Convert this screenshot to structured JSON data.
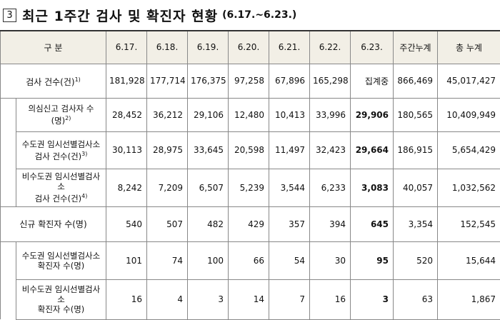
{
  "header": {
    "box": "3",
    "title": "최근 1주간 검사 및 확진자 현황",
    "period": "(6.17.~6.23.)"
  },
  "table": {
    "columns": [
      "구 분",
      "6.17.",
      "6.18.",
      "6.19.",
      "6.20.",
      "6.21.",
      "6.22.",
      "6.23.",
      "주간누계",
      "총 누계"
    ],
    "groups": [
      {
        "label": [
          "검사 건수(건)"
        ],
        "note": "1)",
        "values": [
          "181,928",
          "177,714",
          "176,375",
          "97,258",
          "67,896",
          "165,298",
          "집계중",
          "866,469",
          "45,017,427"
        ],
        "sub": [
          {
            "label": [
              "의심신고 검사자 수(명)"
            ],
            "note": "2)",
            "values": [
              "28,452",
              "36,212",
              "29,106",
              "12,480",
              "10,413",
              "33,996",
              "29,906",
              "180,565",
              "10,409,949"
            ]
          },
          {
            "label": [
              "수도권 임시선별검사소",
              "검사 건수(건)"
            ],
            "note": "3)",
            "values": [
              "30,113",
              "28,975",
              "33,645",
              "20,598",
              "11,497",
              "32,423",
              "29,664",
              "186,915",
              "5,654,429"
            ]
          },
          {
            "label": [
              "비수도권 임시선별검사소",
              "검사 건수(건)"
            ],
            "note": "4)",
            "values": [
              "8,242",
              "7,209",
              "6,507",
              "5,239",
              "3,544",
              "6,233",
              "3,083",
              "40,057",
              "1,032,562"
            ]
          }
        ]
      },
      {
        "label": [
          "신규 확진자 수(명)"
        ],
        "values": [
          "540",
          "507",
          "482",
          "429",
          "357",
          "394",
          "645",
          "3,354",
          "152,545"
        ],
        "sub": [
          {
            "label": [
              "수도권 임시선별검사소",
              "확진자 수(명)"
            ],
            "values": [
              "101",
              "74",
              "100",
              "66",
              "54",
              "30",
              "95",
              "520",
              "15,644"
            ]
          },
          {
            "label": [
              "비수도권 임시선별검사소",
              "확진자 수(명)"
            ],
            "values": [
              "16",
              "4",
              "3",
              "14",
              "7",
              "16",
              "3",
              "63",
              "1,867"
            ]
          }
        ]
      }
    ]
  }
}
